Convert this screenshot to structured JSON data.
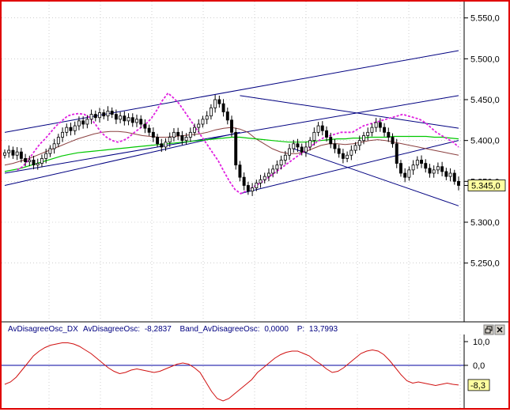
{
  "colors": {
    "frame": "#e00000",
    "candle": "#000000",
    "channel": "#000080",
    "ma_brown": "#8b4040",
    "ma_green": "#00c800",
    "dotted_magenta": "#e020e0",
    "oscillator": "#d01010",
    "zero_line": "#0000a0",
    "price_tag_bg": "#ffffa0"
  },
  "icons": {
    "restore": "restore-icon",
    "close": "close-icon"
  },
  "chart_data": [
    {
      "type": "candlestick",
      "title": "",
      "ylim": [
        5.18,
        5.57
      ],
      "y_ticks": [
        "5.550,0",
        "5.500,0",
        "5.450,0",
        "5.400,0",
        "5.350,0",
        "5.300,0",
        "5.250,0"
      ],
      "y_tick_values": [
        5.55,
        5.5,
        5.45,
        5.4,
        5.35,
        5.3,
        5.25
      ],
      "last_price_label": "5.345,0",
      "last_price": 5.345,
      "grid": "dotted",
      "closes": [
        5.385,
        5.388,
        5.382,
        5.386,
        5.378,
        5.374,
        5.376,
        5.37,
        5.372,
        5.378,
        5.384,
        5.39,
        5.396,
        5.404,
        5.41,
        5.416,
        5.412,
        5.418,
        5.424,
        5.42,
        5.426,
        5.432,
        5.428,
        5.434,
        5.43,
        5.436,
        5.432,
        5.426,
        5.43,
        5.424,
        5.428,
        5.422,
        5.426,
        5.42,
        5.415,
        5.41,
        5.404,
        5.396,
        5.392,
        5.398,
        5.404,
        5.41,
        5.406,
        5.4,
        5.404,
        5.41,
        5.416,
        5.42,
        5.426,
        5.43,
        5.44,
        5.45,
        5.445,
        5.435,
        5.425,
        5.41,
        5.37,
        5.355,
        5.345,
        5.338,
        5.342,
        5.348,
        5.352,
        5.356,
        5.36,
        5.365,
        5.37,
        5.376,
        5.382,
        5.39,
        5.396,
        5.392,
        5.386,
        5.392,
        5.4,
        5.41,
        5.418,
        5.412,
        5.404,
        5.396,
        5.39,
        5.384,
        5.378,
        5.382,
        5.388,
        5.394,
        5.4,
        5.406,
        5.41,
        5.416,
        5.422,
        5.416,
        5.41,
        5.404,
        5.396,
        5.372,
        5.36,
        5.355,
        5.364,
        5.37,
        5.376,
        5.372,
        5.366,
        5.36,
        5.364,
        5.368,
        5.362,
        5.356,
        5.36,
        5.35,
        5.345
      ],
      "channel_lines": [
        {
          "points": [
            [
              0,
              5.41
            ],
            [
              110,
              5.51
            ]
          ]
        },
        {
          "points": [
            [
              0,
              5.36
            ],
            [
              110,
              5.455
            ]
          ]
        },
        {
          "points": [
            [
              0,
              5.345
            ],
            [
              57,
              5.41
            ]
          ]
        },
        {
          "points": [
            [
              57,
              5.455
            ],
            [
              110,
              5.415
            ]
          ]
        },
        {
          "points": [
            [
              57,
              5.335
            ],
            [
              110,
              5.4
            ]
          ]
        },
        {
          "points": [
            [
              70,
              5.39
            ],
            [
              110,
              5.32
            ]
          ]
        }
      ],
      "series": [
        {
          "values": [
            5.37,
            5.372,
            5.375,
            5.378,
            5.382,
            5.386,
            5.39,
            5.394,
            5.398,
            5.402,
            5.405,
            5.408,
            5.41,
            5.411,
            5.411,
            5.41,
            5.408,
            5.406,
            5.405,
            5.404,
            5.404,
            5.405,
            5.406,
            5.407,
            5.408,
            5.41,
            5.413,
            5.415,
            5.416,
            5.414,
            5.41,
            5.402,
            5.396,
            5.39,
            5.386,
            5.384,
            5.384,
            5.386,
            5.39,
            5.394,
            5.396,
            5.396,
            5.395,
            5.396,
            5.398,
            5.4,
            5.401,
            5.4,
            5.398,
            5.396,
            5.394,
            5.392,
            5.39,
            5.388,
            5.386,
            5.384,
            5.382
          ]
        },
        {
          "values": [
            5.362,
            5.364,
            5.366,
            5.369,
            5.372,
            5.375,
            5.378,
            5.381,
            5.383,
            5.385,
            5.386,
            5.387,
            5.388,
            5.389,
            5.39,
            5.391,
            5.392,
            5.393,
            5.394,
            5.395,
            5.396,
            5.397,
            5.398,
            5.399,
            5.4,
            5.401,
            5.402,
            5.403,
            5.404,
            5.404,
            5.403,
            5.402,
            5.401,
            5.4,
            5.399,
            5.398,
            5.398,
            5.398,
            5.399,
            5.4,
            5.401,
            5.402,
            5.402,
            5.403,
            5.403,
            5.404,
            5.404,
            5.404,
            5.405,
            5.405,
            5.405,
            5.405,
            5.405,
            5.404,
            5.404,
            5.403,
            5.402
          ]
        },
        {
          "values": [
            5.364,
            5.368,
            5.376,
            5.386,
            5.395,
            5.402,
            5.41,
            5.418,
            5.424,
            5.43,
            5.432,
            5.433,
            5.432,
            5.428,
            5.42,
            5.41,
            5.404,
            5.4,
            5.398,
            5.4,
            5.404,
            5.41,
            5.415,
            5.42,
            5.427,
            5.437,
            5.449,
            5.458,
            5.452,
            5.445,
            5.435,
            5.425,
            5.415,
            5.405,
            5.395,
            5.385,
            5.375,
            5.362,
            5.35,
            5.34,
            5.335,
            5.338,
            5.342,
            5.346,
            5.35,
            5.355,
            5.36,
            5.365,
            5.37,
            5.375,
            5.38,
            5.385,
            5.39,
            5.395,
            5.4,
            5.404,
            5.406,
            5.408,
            5.41,
            5.41,
            5.41,
            5.414,
            5.418,
            5.42,
            5.422,
            5.424,
            5.426,
            5.428,
            5.43,
            5.432,
            5.43,
            5.428,
            5.426,
            5.422,
            5.416,
            5.41,
            5.406,
            5.402,
            5.398,
            5.392
          ]
        }
      ]
    },
    {
      "type": "line",
      "title": "",
      "header": {
        "name": "AvDisagreeOsc_DX",
        "osc_label": "AvDisagreeOsc:",
        "osc_value": "-8,2837",
        "band_label": "Band_AvDisagreeOsc:",
        "band_value": "0,0000",
        "p_label": "P:",
        "p_value": "13,7993"
      },
      "ylim": [
        -18,
        13
      ],
      "y_ticks": [
        "10,0",
        "0,0"
      ],
      "y_tick_values": [
        10,
        0
      ],
      "last_value_label": "-8,3",
      "zero_line": 0,
      "values": [
        -8,
        -7,
        -5,
        -2,
        1,
        4,
        6,
        7.5,
        8.5,
        9,
        9.5,
        9.5,
        9,
        8,
        6.5,
        5,
        3,
        1,
        -1,
        -2.5,
        -3.5,
        -3,
        -2,
        -1.5,
        -2,
        -2.5,
        -3,
        -2.5,
        -1.5,
        -0.5,
        0.5,
        1,
        0.5,
        -1,
        -3,
        -7,
        -11,
        -14,
        -15,
        -14,
        -12,
        -10,
        -8,
        -6,
        -3,
        -1,
        1,
        3,
        4.5,
        5.5,
        6,
        6,
        5,
        4,
        2,
        0.5,
        -1.5,
        -3,
        -2.5,
        -1,
        1,
        3,
        5,
        6,
        6.5,
        6,
        4.5,
        2,
        -1,
        -4,
        -6.5,
        -7.5,
        -7,
        -7.5,
        -8,
        -8.5,
        -8,
        -7.5,
        -8,
        -8.3
      ]
    }
  ]
}
